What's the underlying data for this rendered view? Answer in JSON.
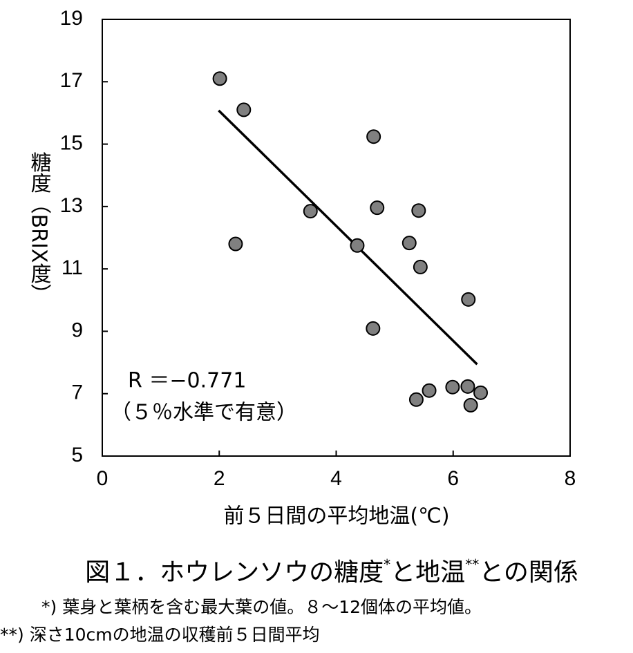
{
  "chart_data": {
    "type": "scatter",
    "title": [
      "図１．ホウレンソウの糖度",
      "*",
      "と地温",
      "**",
      "との関係"
    ],
    "notes": [
      "*) 葉身と葉柄を含む最大葉の値。８～12個体の平均値。",
      "**) 深さ10cmの地温の収穫前５日間平均"
    ],
    "x_label": "前５日間の平均地温(℃)",
    "y_label": "糖度（BRIX度）",
    "annotations": [
      "R ＝−0.771",
      "（５％水準で有意）"
    ],
    "x": [
      2.01,
      2.42,
      2.28,
      3.56,
      4.36,
      4.64,
      4.7,
      4.63,
      5.25,
      5.41,
      5.44,
      6.26,
      5.37,
      5.59,
      5.99,
      6.25,
      6.47,
      6.3
    ],
    "values": [
      17.1,
      16.1,
      11.8,
      12.85,
      11.75,
      15.24,
      12.96,
      9.09,
      11.83,
      12.87,
      11.06,
      10.02,
      6.81,
      7.1,
      7.21,
      7.23,
      7.03,
      6.63
    ],
    "color": "#808080",
    "trendline": {
      "x": [
        1.99,
        6.41
      ],
      "values": [
        16.08,
        7.94
      ],
      "color": "#000000"
    },
    "xlim": [
      0,
      8
    ],
    "xticks": [
      0,
      2,
      4,
      6,
      8
    ],
    "ylim": [
      5,
      19
    ],
    "yticks": [
      5,
      7,
      9,
      11,
      13,
      15,
      17,
      19
    ]
  }
}
